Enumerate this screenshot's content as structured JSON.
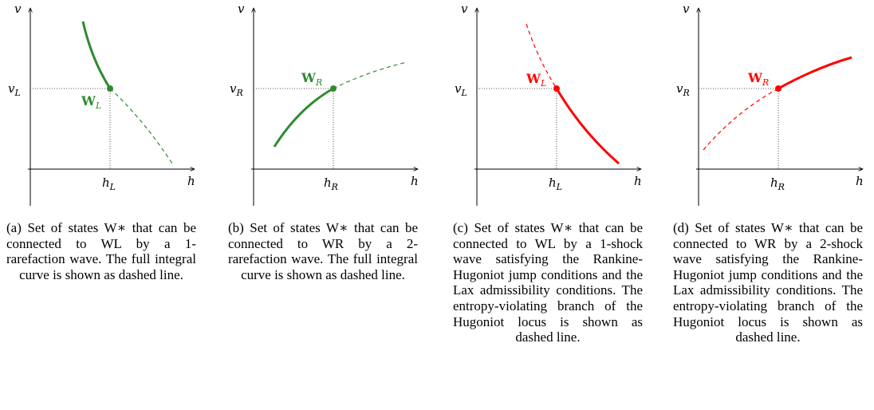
{
  "colors": {
    "rarefaction": "#2e8b2e",
    "shock": "#ff0000",
    "axis": "#000000"
  },
  "panels": [
    {
      "axis_x": "h",
      "axis_y": "v",
      "tick_x": "h",
      "tick_x_sub": "L",
      "tick_y": "v",
      "tick_y_sub": "L",
      "state_label": "W",
      "state_sub": "L",
      "caption": "(a) Set of states W∗ that can be connected to WL by a 1-rarefaction wave. The full integral curve is shown as dashed line."
    },
    {
      "axis_x": "h",
      "axis_y": "v",
      "tick_x": "h",
      "tick_x_sub": "R",
      "tick_y": "v",
      "tick_y_sub": "R",
      "state_label": "W",
      "state_sub": "R",
      "caption": "(b) Set of states W∗ that can be connected to WR by a 2-rarefaction wave. The full integral curve is shown as dashed line."
    },
    {
      "axis_x": "h",
      "axis_y": "v",
      "tick_x": "h",
      "tick_x_sub": "L",
      "tick_y": "v",
      "tick_y_sub": "L",
      "state_label": "W",
      "state_sub": "L",
      "caption": "(c) Set of states W∗ that can be connected to WL by a 1-shock wave satisfying the Rankine-Hugoniot jump conditions and the Lax admissibility conditions. The entropy-violating branch of the Hugoniot locus is shown as dashed line."
    },
    {
      "axis_x": "h",
      "axis_y": "v",
      "tick_x": "h",
      "tick_x_sub": "R",
      "tick_y": "v",
      "tick_y_sub": "R",
      "state_label": "W",
      "state_sub": "R",
      "caption": "(d) Set of states W∗ that can be connected to WR by a 2-shock wave satisfying the Rankine-Hugoniot jump conditions and the Lax admissibility conditions. The entropy-violating branch of the Hugoniot locus is shown as dashed line."
    }
  ]
}
